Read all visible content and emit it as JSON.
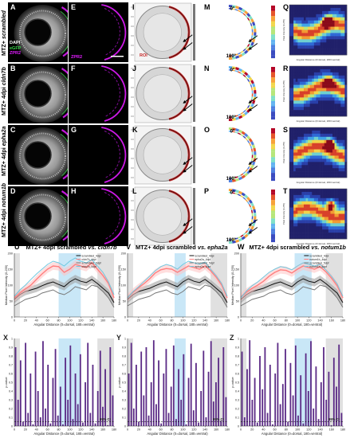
{
  "panel_letters": {
    "A": "A",
    "B": "B",
    "C": "C",
    "D": "D",
    "E": "E",
    "F": "F",
    "G": "G",
    "H": "H",
    "I": "I",
    "J": "J",
    "K": "K",
    "L": "L",
    "M": "M",
    "N": "N",
    "O": "O",
    "P": "P",
    "Q": "Q",
    "R": "R",
    "S": "S",
    "T": "T",
    "U": "U",
    "V": "V",
    "W": "W",
    "X": "X",
    "Y": "Y",
    "Z": "Z"
  },
  "row_labels": [
    {
      "prefix": "MTZ+ ",
      "gene": "scrambled"
    },
    {
      "prefix": "MTZ+ 4dpi ",
      "gene": "cldn7b"
    },
    {
      "prefix": "MTZ+ 4dpi ",
      "gene": "epha2a"
    },
    {
      "prefix": "MTZ+ 4dpi ",
      "gene": "notum1b"
    }
  ],
  "stain_legend": {
    "dapi": "DAPI",
    "egfp": "eGFP",
    "zpr2": "ZPR2"
  },
  "zpr2_label": "ZPR2",
  "roi_label": "ROI",
  "angle_0": "0°",
  "angle_180": "180°",
  "heatmap_ylabel": "Pixel Intensity (0-255)",
  "heatmap_xlabel": "Angular Distance (0=dorsal, 180=ventral)",
  "plot_titles": [
    {
      "prefix": "MTZ+ 4dpi scrambled ",
      "vs": "vs. ",
      "gene": "cldn7b"
    },
    {
      "prefix": "MTZ+ 4dpi scrambled ",
      "vs": "vs. ",
      "gene": "epha2a"
    },
    {
      "prefix": "MTZ+ 4dpi scrambled ",
      "vs": "vs. ",
      "gene": "notum1b"
    }
  ],
  "ci_label": "95% CI",
  "colors": {
    "scrambled": "#111111",
    "scrambled_fill": "#9a9a9a",
    "gene": "#ff7f7f",
    "gene_fill": "#ffc2c2",
    "gene_alt": "#6fc9e0",
    "blue_band": "#c9e7f7",
    "grey_band": "#e0e0e0",
    "bar": "#5b2a86",
    "magenta": "#e21cff"
  },
  "chart_data": [
    {
      "type": "line",
      "panel": "U",
      "xlabel": "Angular Distance (0=dorsal, 180=ventral)",
      "ylabel": "Median Pixel Intensity (0-255)",
      "xlim": [
        0,
        180
      ],
      "ylim": [
        0,
        200
      ],
      "x_ticks": [
        0,
        20,
        40,
        60,
        80,
        100,
        120,
        140,
        160,
        180
      ],
      "y_ticks": [
        0,
        50,
        100,
        150,
        200
      ],
      "grey_bands": [
        [
          0,
          10
        ],
        [
          150,
          180
        ]
      ],
      "blue_band": [
        80,
        120
      ],
      "legend": [
        "scrambled_4dpi",
        "cldn7b_4dpi",
        "scrambled_5dpf",
        "cldn7b_5dpf"
      ],
      "x": [
        0,
        10,
        20,
        30,
        40,
        50,
        60,
        70,
        80,
        90,
        100,
        110,
        120,
        130,
        140,
        150,
        160,
        170,
        180
      ],
      "series": [
        {
          "name": "scrambled_4dpi",
          "values": [
            55,
            70,
            80,
            85,
            90,
            98,
            105,
            110,
            102,
            95,
            110,
            120,
            112,
            108,
            118,
            105,
            90,
            75,
            45
          ]
        },
        {
          "name": "cldn7b_4dpi",
          "values": [
            60,
            75,
            88,
            100,
            118,
            135,
            150,
            160,
            158,
            140,
            150,
            165,
            160,
            155,
            170,
            150,
            130,
            105,
            60
          ]
        },
        {
          "name": "scrambled_5dpf",
          "values": [
            35,
            45,
            55,
            60,
            65,
            75,
            80,
            85,
            75,
            70,
            80,
            95,
            90,
            85,
            100,
            95,
            80,
            60,
            30
          ]
        },
        {
          "name": "cldn7b_5dpf",
          "values": [
            65,
            85,
            100,
            118,
            135,
            150,
            165,
            175,
            170,
            160,
            175,
            185,
            175,
            170,
            180,
            160,
            140,
            110,
            70
          ]
        }
      ]
    },
    {
      "type": "line",
      "panel": "V",
      "xlabel": "Angular Distance (0=dorsal, 180=ventral)",
      "ylabel": "Median Pixel Intensity (0-255)",
      "xlim": [
        0,
        180
      ],
      "ylim": [
        0,
        200
      ],
      "x_ticks": [
        0,
        20,
        40,
        60,
        80,
        100,
        120,
        140,
        160,
        180
      ],
      "y_ticks": [
        0,
        50,
        100,
        150,
        200
      ],
      "grey_bands": [
        [
          0,
          10
        ],
        [
          150,
          180
        ]
      ],
      "blue_band": [
        85,
        105
      ],
      "legend": [
        "scrambled_4dpi",
        "epha2a_4dpi",
        "scrambled_5dpf",
        "epha2a_5dpf"
      ],
      "x": [
        0,
        10,
        20,
        30,
        40,
        50,
        60,
        70,
        80,
        90,
        100,
        110,
        120,
        130,
        140,
        150,
        160,
        170,
        180
      ],
      "series": [
        {
          "name": "scrambled_4dpi",
          "values": [
            55,
            70,
            80,
            85,
            90,
            98,
            105,
            110,
            102,
            95,
            110,
            120,
            112,
            108,
            118,
            105,
            90,
            75,
            45
          ]
        },
        {
          "name": "epha2a_4dpi",
          "values": [
            60,
            78,
            92,
            105,
            120,
            138,
            148,
            152,
            150,
            140,
            150,
            160,
            155,
            150,
            160,
            145,
            125,
            100,
            60
          ]
        },
        {
          "name": "scrambled_5dpf",
          "values": [
            35,
            45,
            55,
            60,
            65,
            75,
            80,
            85,
            75,
            70,
            80,
            95,
            90,
            85,
            100,
            95,
            80,
            60,
            30
          ]
        },
        {
          "name": "epha2a_5dpf",
          "values": [
            60,
            80,
            95,
            112,
            128,
            145,
            158,
            165,
            160,
            150,
            165,
            175,
            170,
            165,
            172,
            150,
            130,
            105,
            65
          ]
        }
      ]
    },
    {
      "type": "line",
      "panel": "W",
      "xlabel": "Angular Distance (0=dorsal, 180=ventral)",
      "ylabel": "Median Pixel Intensity (0-255)",
      "xlim": [
        0,
        180
      ],
      "ylim": [
        0,
        200
      ],
      "x_ticks": [
        0,
        20,
        40,
        60,
        80,
        100,
        120,
        140,
        160,
        180
      ],
      "y_ticks": [
        0,
        50,
        100,
        150,
        200
      ],
      "grey_bands": [
        [
          0,
          10
        ],
        [
          150,
          180
        ]
      ],
      "blue_band": [
        95,
        125
      ],
      "legend": [
        "scrambled_4dpi",
        "notum1b_4dpi",
        "scrambled_5dpf",
        "notum1b_5dpf"
      ],
      "x": [
        0,
        10,
        20,
        30,
        40,
        50,
        60,
        70,
        80,
        90,
        100,
        110,
        120,
        130,
        140,
        150,
        160,
        170,
        180
      ],
      "series": [
        {
          "name": "scrambled_4dpi",
          "values": [
            55,
            70,
            80,
            85,
            90,
            98,
            105,
            110,
            102,
            95,
            110,
            120,
            112,
            108,
            118,
            105,
            90,
            75,
            45
          ]
        },
        {
          "name": "notum1b_4dpi",
          "values": [
            62,
            78,
            90,
            100,
            112,
            128,
            140,
            148,
            146,
            138,
            150,
            160,
            155,
            150,
            158,
            142,
            122,
            98,
            60
          ]
        },
        {
          "name": "scrambled_5dpf",
          "values": [
            35,
            45,
            55,
            60,
            65,
            75,
            80,
            85,
            75,
            70,
            80,
            95,
            90,
            85,
            100,
            95,
            80,
            60,
            30
          ]
        },
        {
          "name": "notum1b_5dpf",
          "values": [
            60,
            82,
            98,
            110,
            125,
            140,
            150,
            158,
            155,
            148,
            160,
            170,
            165,
            160,
            165,
            148,
            128,
            104,
            65
          ]
        }
      ]
    },
    {
      "type": "bar",
      "panel": "X",
      "xlabel": "Angular Distance (0=dorsal, 180=ventral)",
      "ylabel": "p-value",
      "xlim": [
        0,
        180
      ],
      "ylim": [
        0,
        1
      ],
      "x_ticks": [
        0,
        20,
        40,
        60,
        80,
        100,
        120,
        140,
        160,
        180
      ],
      "y_ticks": [
        0,
        0.1,
        0.2,
        0.3,
        0.4,
        0.5,
        0.6,
        0.7,
        0.8,
        0.9,
        1
      ],
      "ci_threshold": 0.05,
      "grey_bands": [
        [
          0,
          10
        ],
        [
          150,
          180
        ]
      ],
      "blue_band": [
        80,
        120
      ],
      "values": [
        0.9,
        0.3,
        0.75,
        0.05,
        0.95,
        0.15,
        0.6,
        0.02,
        0.85,
        0.4,
        0.1,
        0.97,
        0.2,
        0.7,
        0.03,
        0.55,
        0.88,
        0.12,
        0.45,
        0.02,
        0.78,
        0.3,
        0.92,
        0.08,
        0.6,
        0.25,
        0.82,
        0.04,
        0.5,
        0.95,
        0.15,
        0.7,
        0.03,
        0.4,
        0.86,
        0.22,
        0.65,
        0.01,
        0.9,
        0.35
      ]
    },
    {
      "type": "bar",
      "panel": "Y",
      "xlabel": "Angular Distance (0=dorsal, 180=ventral)",
      "ylabel": "p-value",
      "xlim": [
        0,
        180
      ],
      "ylim": [
        0,
        1
      ],
      "x_ticks": [
        0,
        20,
        40,
        60,
        80,
        100,
        120,
        140,
        160,
        180
      ],
      "y_ticks": [
        0,
        0.1,
        0.2,
        0.3,
        0.4,
        0.5,
        0.6,
        0.7,
        0.8,
        0.9,
        1
      ],
      "ci_threshold": 0.05,
      "grey_bands": [
        [
          0,
          10
        ],
        [
          150,
          180
        ]
      ],
      "blue_band": [
        85,
        105
      ],
      "values": [
        0.6,
        0.95,
        0.2,
        0.7,
        0.05,
        0.85,
        0.35,
        0.9,
        0.12,
        0.5,
        0.98,
        0.25,
        0.75,
        0.03,
        0.6,
        0.88,
        0.15,
        0.45,
        0.92,
        0.08,
        0.65,
        0.3,
        0.82,
        0.02,
        0.55,
        0.94,
        0.18,
        0.72,
        0.04,
        0.4,
        0.86,
        0.1,
        0.62,
        0.97,
        0.28,
        0.5,
        0.78,
        0.06,
        0.9,
        0.33
      ]
    },
    {
      "type": "bar",
      "panel": "Z",
      "xlabel": "Angular Distance (0=dorsal, 180=ventral)",
      "ylabel": "p-value",
      "xlim": [
        0,
        180
      ],
      "ylim": [
        0,
        1
      ],
      "x_ticks": [
        0,
        20,
        40,
        60,
        80,
        100,
        120,
        140,
        160,
        180
      ],
      "y_ticks": [
        0,
        0.1,
        0.2,
        0.3,
        0.4,
        0.5,
        0.6,
        0.7,
        0.8,
        0.9,
        1
      ],
      "ci_threshold": 0.05,
      "grey_bands": [
        [
          0,
          10
        ],
        [
          150,
          180
        ]
      ],
      "blue_band": [
        95,
        125
      ],
      "values": [
        0.85,
        0.1,
        0.65,
        0.98,
        0.3,
        0.55,
        0.04,
        0.8,
        0.42,
        0.9,
        0.15,
        0.7,
        0.02,
        0.6,
        0.95,
        0.25,
        0.48,
        0.88,
        0.05,
        0.72,
        0.35,
        0.92,
        0.12,
        0.58,
        0.03,
        0.83,
        0.4,
        0.97,
        0.2,
        0.68,
        0.08,
        0.5,
        0.9,
        0.3,
        0.62,
        0.01,
        0.78,
        0.45,
        0.93,
        0.15
      ]
    }
  ]
}
